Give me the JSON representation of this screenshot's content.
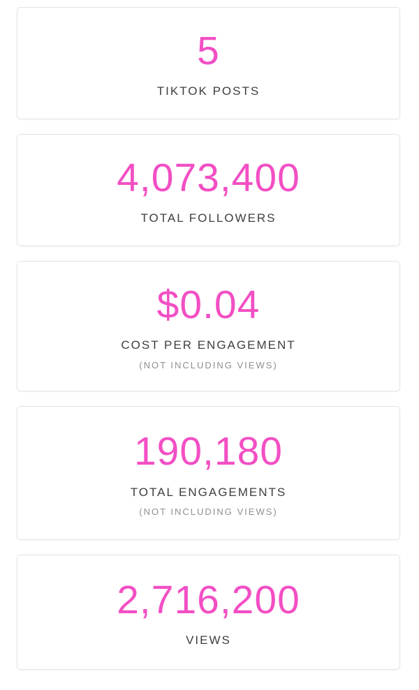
{
  "theme": {
    "accent": "#f24fc4",
    "label_color": "#3e3e3e",
    "sublabel_color": "#8f8f8f",
    "card_border": "#e3e3e6",
    "card_background": "#ffffff",
    "page_background": "#ffffff"
  },
  "cards": [
    {
      "value": "5",
      "label": "TIKTOK POSTS"
    },
    {
      "value": "4,073,400",
      "label": "TOTAL FOLLOWERS"
    },
    {
      "value": "$0.04",
      "label": "COST PER ENGAGEMENT",
      "sublabel": "(NOT INCLUDING VIEWS)"
    },
    {
      "value": "190,180",
      "label": "TOTAL ENGAGEMENTS",
      "sublabel": "(NOT INCLUDING VIEWS)"
    },
    {
      "value": "2,716,200",
      "label": "VIEWS"
    }
  ]
}
